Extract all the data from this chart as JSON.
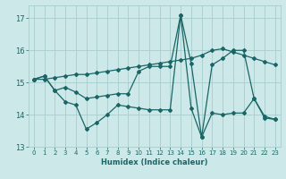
{
  "xlabel": "Humidex (Indice chaleur)",
  "ylabel": "",
  "xlim": [
    -0.5,
    23.5
  ],
  "ylim": [
    13.0,
    17.4
  ],
  "yticks": [
    13,
    14,
    15,
    16,
    17
  ],
  "xticks": [
    0,
    1,
    2,
    3,
    4,
    5,
    6,
    7,
    8,
    9,
    10,
    11,
    12,
    13,
    14,
    15,
    16,
    17,
    18,
    19,
    20,
    21,
    22,
    23
  ],
  "background_color": "#cce8e8",
  "grid_color": "#aacccc",
  "line_color": "#1a6666",
  "line1_x": [
    0,
    1,
    2,
    3,
    4,
    5,
    6,
    7,
    8,
    9,
    10,
    11,
    12,
    13,
    14,
    15,
    16,
    17,
    18,
    19,
    20,
    21,
    22,
    23
  ],
  "line1_y": [
    15.1,
    15.1,
    15.15,
    15.2,
    15.25,
    15.25,
    15.3,
    15.35,
    15.4,
    15.45,
    15.5,
    15.55,
    15.6,
    15.65,
    15.7,
    15.75,
    15.85,
    16.0,
    16.05,
    15.95,
    15.85,
    15.75,
    15.65,
    15.55
  ],
  "line2_x": [
    0,
    1,
    2,
    3,
    4,
    5,
    6,
    7,
    8,
    9,
    10,
    11,
    12,
    13,
    14,
    15,
    16,
    17,
    18,
    19,
    20,
    21,
    22,
    23
  ],
  "line2_y": [
    15.1,
    15.2,
    14.75,
    14.85,
    14.7,
    14.5,
    14.55,
    14.6,
    14.65,
    14.65,
    15.35,
    15.5,
    15.5,
    15.5,
    17.1,
    15.6,
    13.3,
    15.55,
    15.75,
    16.0,
    16.0,
    14.5,
    13.9,
    13.85
  ],
  "line3_x": [
    0,
    1,
    2,
    3,
    4,
    5,
    6,
    7,
    8,
    9,
    10,
    11,
    12,
    13,
    14,
    15,
    16,
    17,
    18,
    19,
    20,
    21,
    22,
    23
  ],
  "line3_y": [
    15.1,
    15.2,
    14.75,
    14.4,
    14.3,
    13.55,
    13.75,
    14.0,
    14.3,
    14.25,
    14.2,
    14.15,
    14.15,
    14.15,
    17.1,
    14.2,
    13.3,
    14.05,
    14.0,
    14.05,
    14.05,
    14.5,
    13.95,
    13.85
  ]
}
